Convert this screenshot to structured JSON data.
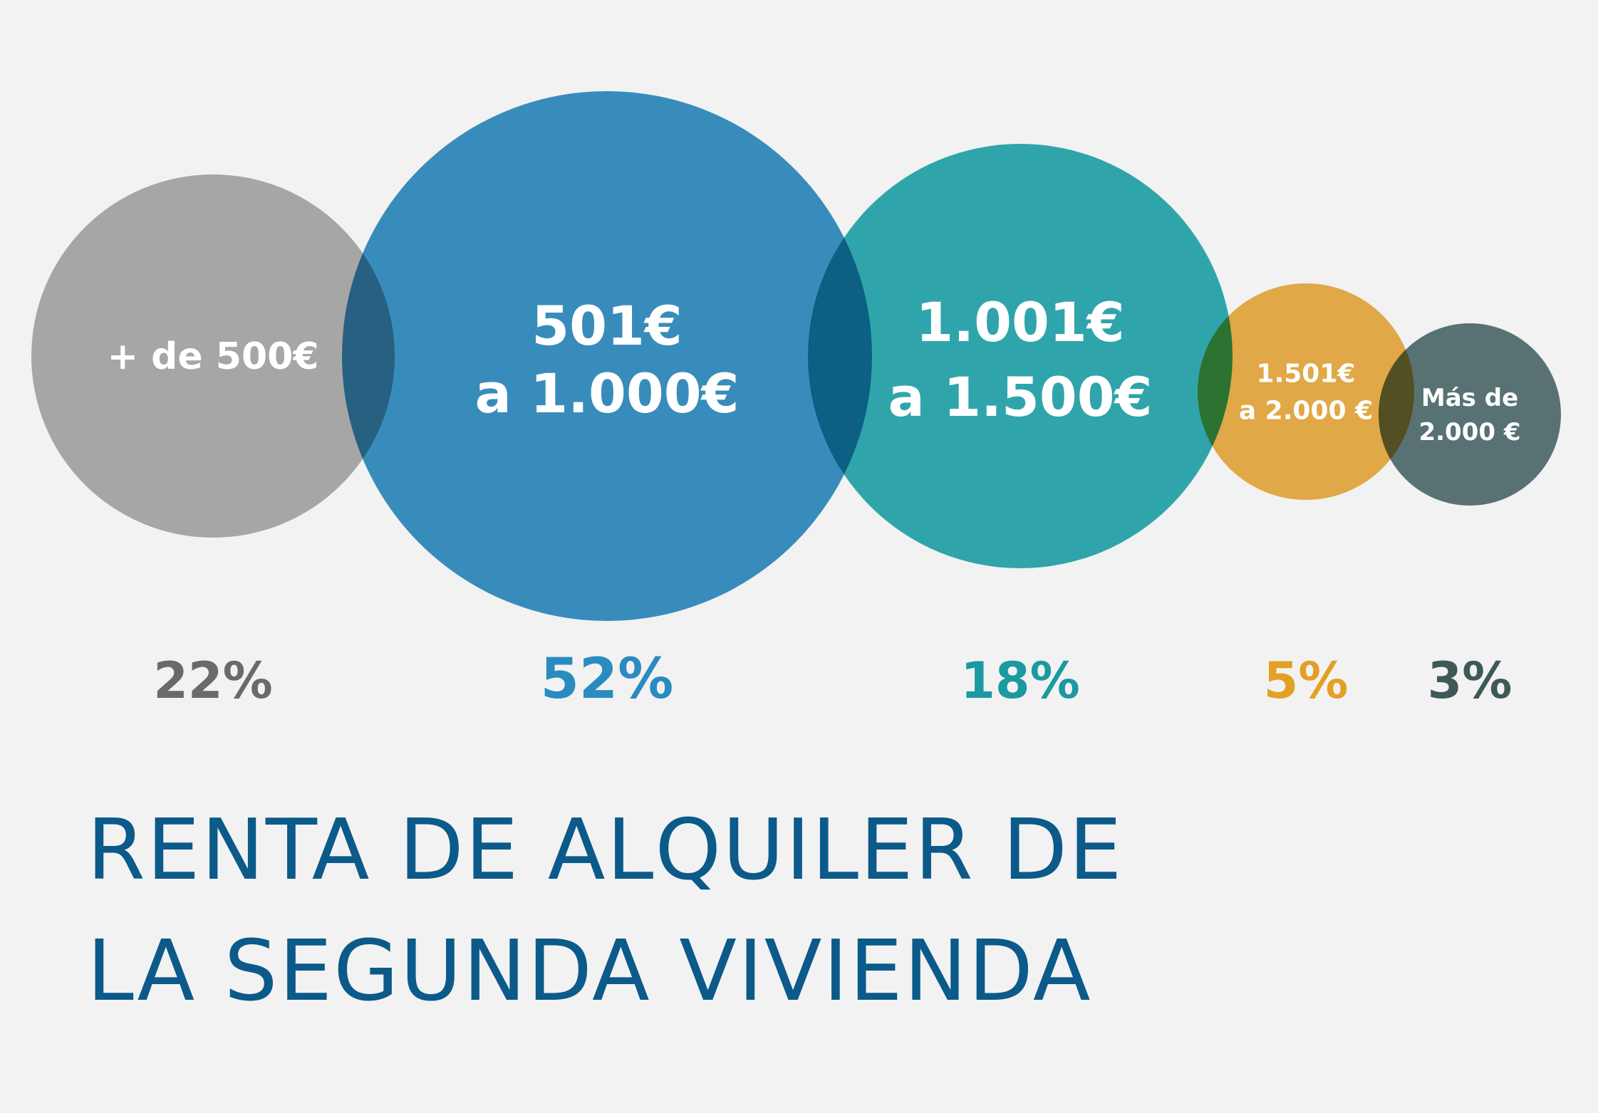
{
  "title": "RENTA DE ALQUILER DE\nLA SEGUNDA VIVIENDA",
  "chart_data": {
    "type": "bubble",
    "title": "RENTA DE ALQUILER DE LA SEGUNDA VIVIENDA",
    "categories": [
      [
        "+ de 500€"
      ],
      [
        "501€",
        "a 1.000€"
      ],
      [
        "1.001€",
        "a 1.500€"
      ],
      [
        "1.501€",
        "a 2.000 €"
      ],
      [
        "Más de",
        "2.000 €"
      ]
    ],
    "values": [
      22,
      52,
      18,
      5,
      3
    ],
    "value_labels": [
      "22%",
      "52%",
      "18%",
      "5%",
      "3%"
    ],
    "colors": [
      "#a8a8a8",
      "#2a8bc0",
      "#1fa7ae",
      "#eaaa3a",
      "#4f6d6e"
    ],
    "label_colors": [
      "#6a6a6a",
      "#2a8bc0",
      "#1a9aa0",
      "#e3a024",
      "#3f5859"
    ]
  }
}
